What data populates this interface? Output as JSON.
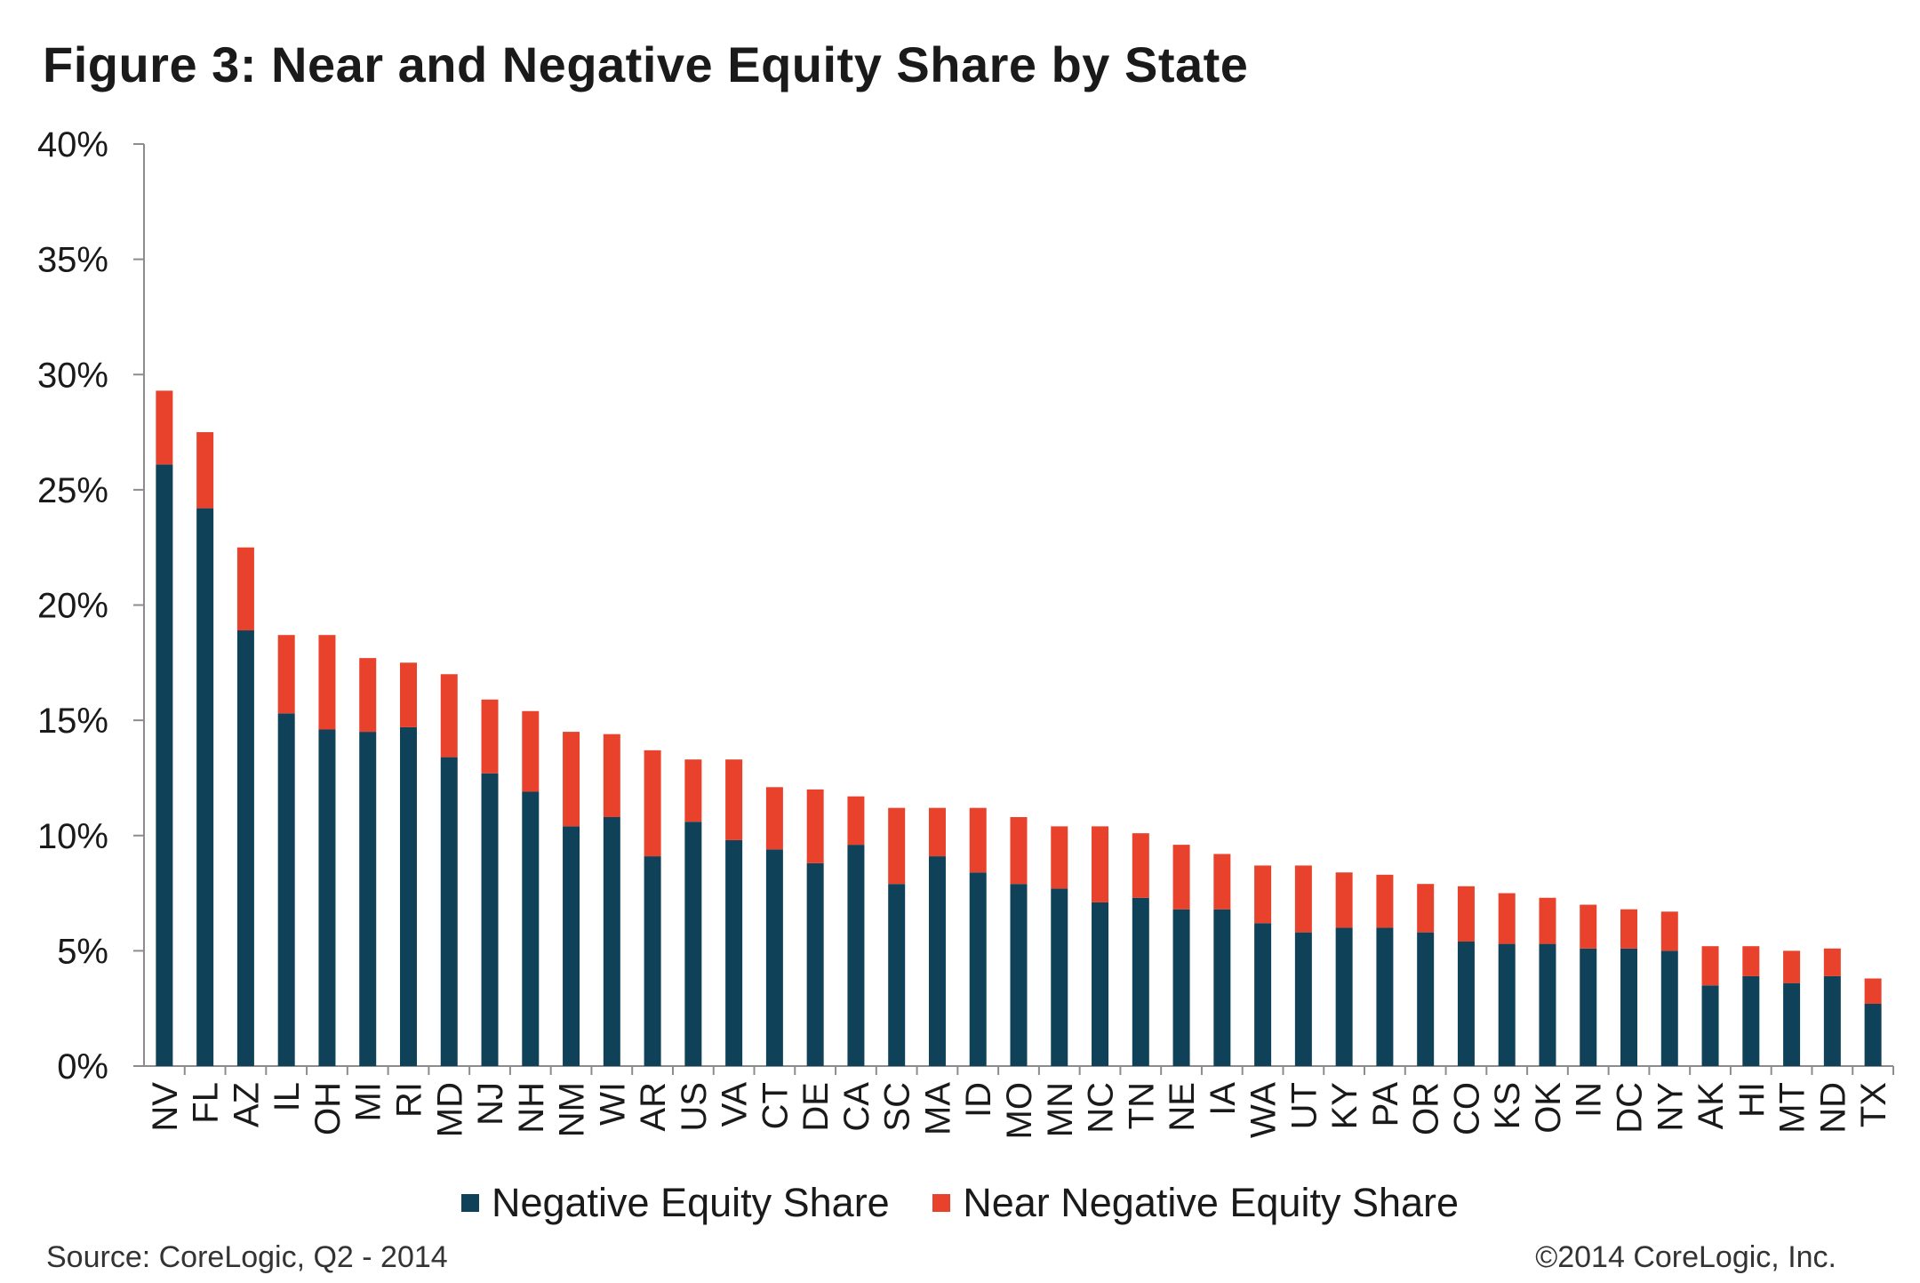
{
  "chart_data": {
    "type": "bar",
    "stacked": true,
    "title": "Figure 3: Near and Negative Equity Share by State",
    "xlabel": "",
    "ylabel": "",
    "ylim": [
      0,
      40
    ],
    "yticks": [
      "0%",
      "5%",
      "10%",
      "15%",
      "20%",
      "25%",
      "30%",
      "35%",
      "40%"
    ],
    "grid": false,
    "legend_position": "bottom",
    "categories": [
      "NV",
      "FL",
      "AZ",
      "IL",
      "OH",
      "MI",
      "RI",
      "MD",
      "NJ",
      "NH",
      "NM",
      "WI",
      "AR",
      "US",
      "VA",
      "CT",
      "DE",
      "CA",
      "SC",
      "MA",
      "ID",
      "MO",
      "MN",
      "NC",
      "TN",
      "NE",
      "IA",
      "WA",
      "UT",
      "KY",
      "PA",
      "OR",
      "CO",
      "KS",
      "OK",
      "IN",
      "DC",
      "NY",
      "AK",
      "HI",
      "MT",
      "ND",
      "TX"
    ],
    "series": [
      {
        "name": "Negative Equity Share",
        "color": "#0f4258",
        "values": [
          26.1,
          24.2,
          18.9,
          15.3,
          14.6,
          14.5,
          14.7,
          13.4,
          12.7,
          11.9,
          10.4,
          10.8,
          9.1,
          10.6,
          9.8,
          9.4,
          8.8,
          9.6,
          7.9,
          9.1,
          8.4,
          7.9,
          7.7,
          7.1,
          7.3,
          6.8,
          6.8,
          6.2,
          5.8,
          6.0,
          6.0,
          5.8,
          5.4,
          5.3,
          5.3,
          5.1,
          5.1,
          5.0,
          3.5,
          3.9,
          3.6,
          3.9,
          2.7
        ]
      },
      {
        "name": "Near Negative Equity Share",
        "color": "#e8412c",
        "values": [
          3.2,
          3.3,
          3.6,
          3.4,
          4.1,
          3.2,
          2.8,
          3.6,
          3.2,
          3.5,
          4.1,
          3.6,
          4.6,
          2.7,
          3.5,
          2.7,
          3.2,
          2.1,
          3.3,
          2.1,
          2.8,
          2.9,
          2.7,
          3.3,
          2.8,
          2.8,
          2.4,
          2.5,
          2.9,
          2.4,
          2.3,
          2.1,
          2.4,
          2.2,
          2.0,
          1.9,
          1.7,
          1.7,
          1.7,
          1.3,
          1.4,
          1.2,
          1.1
        ]
      }
    ]
  },
  "notes": {
    "source": "Source: CoreLogic, Q2 - 2014",
    "copyright": "©2014 CoreLogic, Inc."
  }
}
